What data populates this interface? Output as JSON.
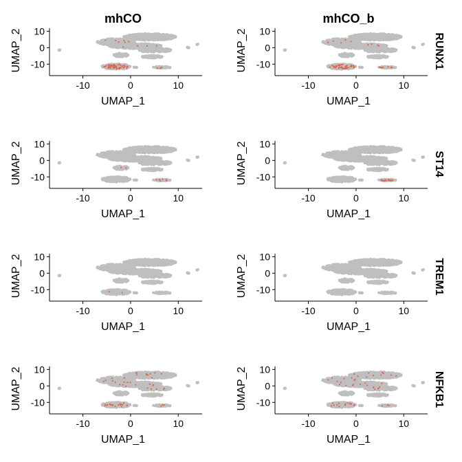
{
  "chart_data": {
    "type": "scatter",
    "layout": "facet-grid",
    "column_titles": [
      "mhCO",
      "mhCO_b"
    ],
    "row_titles": [
      "RUNX1",
      "ST14",
      "TREM1",
      "NFKB1"
    ],
    "xlabel": "UMAP_1",
    "ylabel": "UMAP_2",
    "xlim": [
      -17,
      15
    ],
    "ylim": [
      -17,
      11
    ],
    "xticks": [
      -10,
      0,
      10
    ],
    "yticks": [
      -10,
      0,
      10
    ],
    "background_color": "#bfbfbf",
    "highlight_color": "#e2654a",
    "grid": false,
    "embedding_regions": [
      {
        "name": "top-main",
        "cx": 4,
        "cy": 6.5,
        "rx": 5.5,
        "ry": 2
      },
      {
        "name": "top-left",
        "cx": -3,
        "cy": 3.5,
        "rx": 4,
        "ry": 2
      },
      {
        "name": "mid-band",
        "cx": 1,
        "cy": 1,
        "rx": 5.5,
        "ry": 1.5
      },
      {
        "name": "right-band",
        "cx": 5,
        "cy": -1.5,
        "rx": 3.5,
        "ry": 1.2
      },
      {
        "name": "left-lobe",
        "cx": -2,
        "cy": -4.5,
        "rx": 1.5,
        "ry": 1.2
      },
      {
        "name": "low-stripe",
        "cx": 4.5,
        "cy": -5.5,
        "rx": 2.2,
        "ry": 0.8
      },
      {
        "name": "bottom-blob",
        "cx": -3,
        "cy": -11.5,
        "rx": 3,
        "ry": 1.6
      },
      {
        "name": "bottom-right",
        "cx": 6.5,
        "cy": -12,
        "rx": 1.8,
        "ry": 0.6
      },
      {
        "name": "stray-center",
        "cx": 1,
        "cy": -12,
        "rx": 0.4,
        "ry": 0.3
      },
      {
        "name": "stray-right",
        "cx": 12,
        "cy": 0,
        "rx": 0.3,
        "ry": 0.3
      },
      {
        "name": "stray-far-right",
        "cx": 14,
        "cy": 2,
        "rx": 0.2,
        "ry": 0.2
      },
      {
        "name": "stray-left",
        "cx": -15,
        "cy": -1.5,
        "rx": 0.2,
        "ry": 0.2
      }
    ],
    "panels": [
      {
        "row": "RUNX1",
        "column": "mhCO",
        "expressing_cells": [
          {
            "region": "bottom-blob",
            "count": 60
          },
          {
            "region": "top-left",
            "count": 6
          },
          {
            "region": "mid-band",
            "count": 4
          },
          {
            "region": "bottom-right",
            "count": 4
          }
        ]
      },
      {
        "row": "RUNX1",
        "column": "mhCO_b",
        "expressing_cells": [
          {
            "region": "bottom-blob",
            "count": 45
          },
          {
            "region": "bottom-right",
            "count": 10
          },
          {
            "region": "top-left",
            "count": 5
          },
          {
            "region": "mid-band",
            "count": 4
          }
        ]
      },
      {
        "row": "ST14",
        "column": "mhCO",
        "expressing_cells": [
          {
            "region": "bottom-right",
            "count": 8
          },
          {
            "region": "left-lobe",
            "count": 2
          }
        ]
      },
      {
        "row": "ST14",
        "column": "mhCO_b",
        "expressing_cells": [
          {
            "region": "bottom-right",
            "count": 18
          }
        ]
      },
      {
        "row": "TREM1",
        "column": "mhCO",
        "expressing_cells": [
          {
            "region": "bottom-blob",
            "count": 2
          }
        ]
      },
      {
        "row": "TREM1",
        "column": "mhCO_b",
        "expressing_cells": []
      },
      {
        "row": "NFKB1",
        "column": "mhCO",
        "expressing_cells": [
          {
            "region": "bottom-blob",
            "count": 18
          },
          {
            "region": "top-main",
            "count": 10
          },
          {
            "region": "top-left",
            "count": 8
          },
          {
            "region": "mid-band",
            "count": 8
          },
          {
            "region": "right-band",
            "count": 5
          },
          {
            "region": "bottom-right",
            "count": 3
          }
        ]
      },
      {
        "row": "NFKB1",
        "column": "mhCO_b",
        "expressing_cells": [
          {
            "region": "bottom-blob",
            "count": 14
          },
          {
            "region": "top-main",
            "count": 10
          },
          {
            "region": "top-left",
            "count": 8
          },
          {
            "region": "mid-band",
            "count": 8
          },
          {
            "region": "right-band",
            "count": 6
          },
          {
            "region": "bottom-right",
            "count": 3
          }
        ]
      }
    ]
  }
}
